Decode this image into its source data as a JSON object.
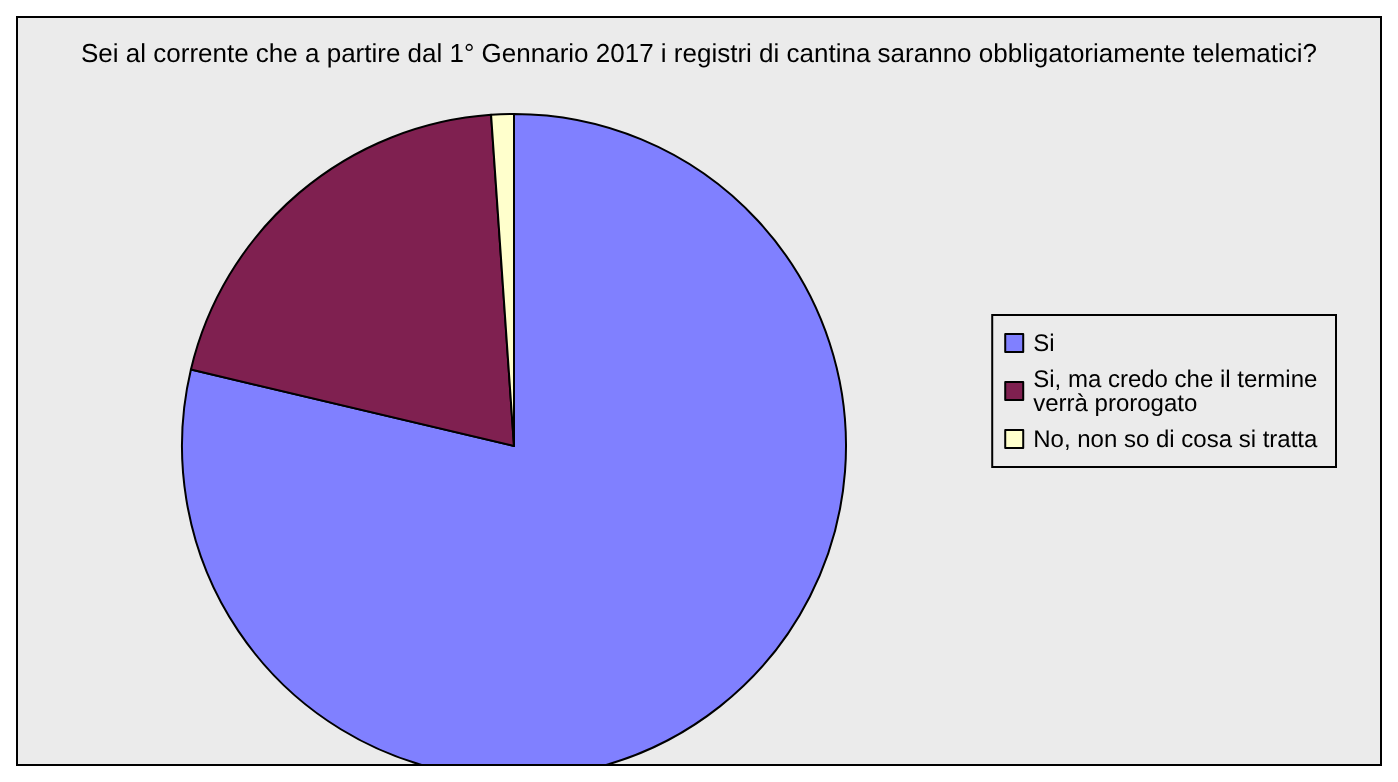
{
  "chart_data": {
    "type": "pie",
    "title": "Sei al corrente che a partire dal 1° Gennario 2017 i registri di cantina saranno obbligatoriamente telematici?",
    "categories": [
      "Si",
      "Si, ma credo che il termine verrà prorogato",
      "No, non so di cosa si tratta"
    ],
    "values": [
      78.7,
      20.2,
      1.1
    ],
    "colors": [
      "#8080ff",
      "#7f2050",
      "#ffffcc"
    ],
    "legend": "right"
  }
}
